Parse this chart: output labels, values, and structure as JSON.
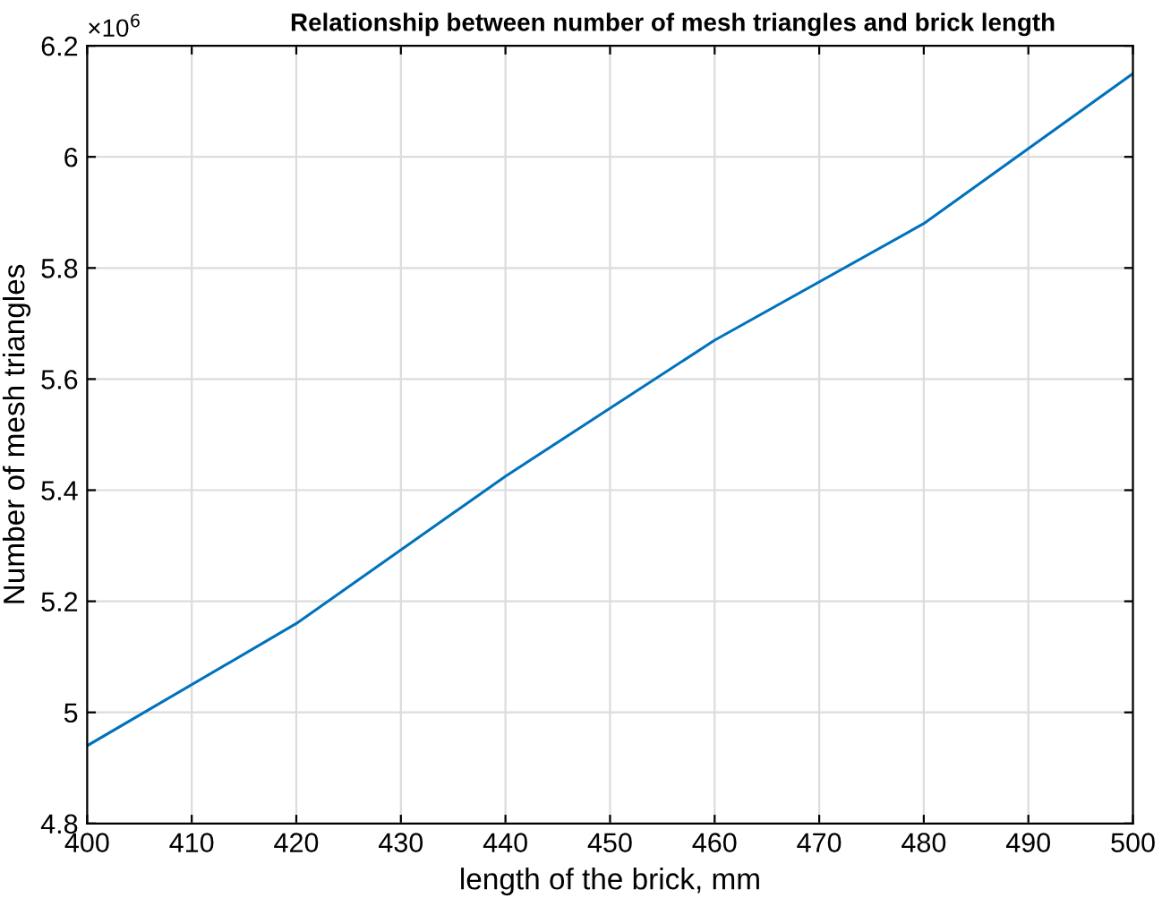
{
  "chart_data": {
    "type": "line",
    "title": "Relationship between number of mesh triangles and brick length",
    "xlabel": "length of the brick, mm",
    "ylabel": "Number of mesh triangles",
    "annotations": [
      "×10$^{6}$"
    ],
    "x": [
      400,
      420,
      440,
      460,
      480,
      500
    ],
    "series": [
      {
        "color": "#0072bd",
        "values": [
          4.94,
          5.16,
          5.425,
          5.67,
          5.88,
          6.15
        ]
      }
    ],
    "xlim": [
      400,
      500
    ],
    "xticks": [
      400,
      410,
      420,
      430,
      440,
      450,
      460,
      470,
      480,
      490,
      500
    ],
    "ylim": [
      4.8,
      6.2
    ],
    "yticks": [
      4.8,
      5,
      5.2,
      5.4,
      5.6,
      5.8,
      6,
      6.2
    ],
    "grid": true,
    "marker": "none",
    "line_style": "solid"
  }
}
